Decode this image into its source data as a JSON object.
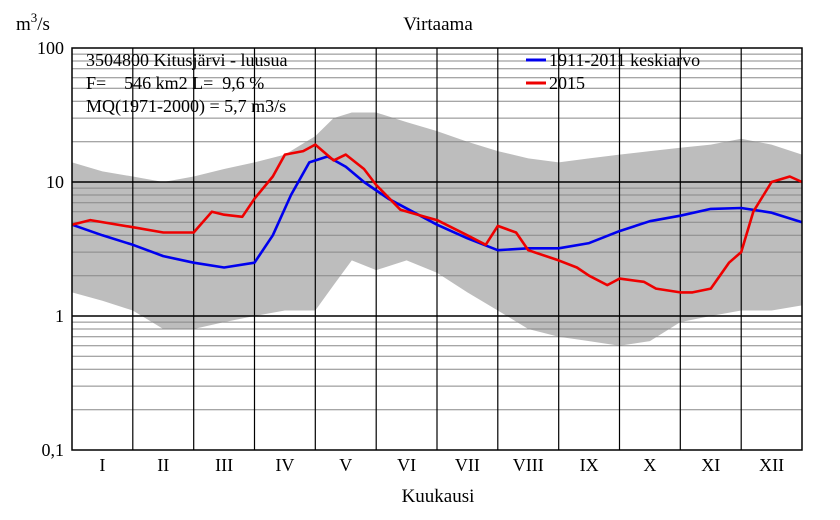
{
  "chart_data": {
    "type": "line",
    "title": "Virtaama",
    "ylabel": "m3/s",
    "ylabel_base": "m",
    "ylabel_sup": "3",
    "ylabel_rest": "/s",
    "xlabel": "Kuukausi",
    "yscale": "log",
    "ylim": [
      0.1,
      100
    ],
    "xlim": [
      0,
      12
    ],
    "y_tick_labels": [
      {
        "value": 100,
        "label": "100"
      },
      {
        "value": 10,
        "label": "10"
      },
      {
        "value": 1,
        "label": "1"
      },
      {
        "value": 0.1,
        "label": "0,1"
      }
    ],
    "categories": [
      "I",
      "II",
      "III",
      "IV",
      "V",
      "VI",
      "VII",
      "VIII",
      "IX",
      "X",
      "XI",
      "XII"
    ],
    "info_lines": [
      "3504800 Kitusjärvi - luusua",
      "F=    546 km2 L=  9,6 %",
      "MQ(1971-2000) = 5,7 m3/s"
    ],
    "colors": {
      "band": "#bdbdbd",
      "mean": "#0000ee",
      "year": "#ee0000",
      "axis": "#000000",
      "grid": "#888888"
    },
    "envelope": {
      "name": "min-max range",
      "x": [
        0,
        0.5,
        1.0,
        1.5,
        2.0,
        2.5,
        3.0,
        3.5,
        4.0,
        4.3,
        4.6,
        5.0,
        5.5,
        6.0,
        6.5,
        7.0,
        7.5,
        8.0,
        8.5,
        9.0,
        9.5,
        10.0,
        10.5,
        11.0,
        11.5,
        12.0
      ],
      "max": [
        14,
        12,
        11,
        10,
        11,
        12.5,
        14,
        16,
        22,
        30,
        33,
        33,
        28,
        24,
        20,
        17,
        15,
        14,
        15,
        16,
        17,
        18,
        19,
        21,
        19,
        16
      ],
      "min": [
        1.5,
        1.3,
        1.1,
        0.8,
        0.8,
        0.9,
        1.0,
        1.1,
        1.1,
        1.7,
        2.6,
        2.2,
        2.6,
        2.1,
        1.5,
        1.1,
        0.8,
        0.7,
        0.65,
        0.6,
        0.65,
        0.9,
        1.0,
        1.1,
        1.1,
        1.2
      ]
    },
    "series": [
      {
        "name": "1911-2011 keskiarvo",
        "x": [
          0,
          0.5,
          1.0,
          1.5,
          2.0,
          2.5,
          3.0,
          3.3,
          3.6,
          3.9,
          4.2,
          4.5,
          4.8,
          5.2,
          5.6,
          6.0,
          6.5,
          7.0,
          7.5,
          8.0,
          8.5,
          9.0,
          9.5,
          10.0,
          10.5,
          11.0,
          11.5,
          12.0
        ],
        "values": [
          4.8,
          4.0,
          3.4,
          2.8,
          2.5,
          2.3,
          2.5,
          4.0,
          8.0,
          14.0,
          15.5,
          13.0,
          10.0,
          7.5,
          6.0,
          4.8,
          3.8,
          3.1,
          3.2,
          3.2,
          3.5,
          4.3,
          5.1,
          5.6,
          6.3,
          6.4,
          5.9,
          5.0
        ]
      },
      {
        "name": "2015",
        "x": [
          0,
          0.3,
          1.0,
          1.5,
          2.0,
          2.3,
          2.5,
          2.8,
          3.0,
          3.3,
          3.5,
          3.8,
          4.0,
          4.3,
          4.5,
          4.8,
          5.0,
          5.4,
          5.8,
          6.0,
          6.5,
          6.8,
          7.0,
          7.3,
          7.5,
          8.0,
          8.3,
          8.5,
          8.8,
          9.0,
          9.4,
          9.6,
          10.0,
          10.2,
          10.5,
          10.8,
          11.0,
          11.2,
          11.5,
          11.8,
          12.0
        ],
        "values": [
          4.8,
          5.2,
          4.6,
          4.2,
          4.2,
          6.0,
          5.7,
          5.5,
          7.5,
          11.0,
          16.0,
          17.0,
          19.0,
          14.5,
          16.0,
          12.5,
          9.5,
          6.2,
          5.5,
          5.2,
          4.0,
          3.4,
          4.7,
          4.2,
          3.1,
          2.6,
          2.3,
          2.0,
          1.7,
          1.9,
          1.8,
          1.6,
          1.5,
          1.5,
          1.6,
          2.5,
          3.0,
          6.0,
          10.0,
          11.0,
          10.0
        ]
      }
    ],
    "legend": {
      "placement": "top-right",
      "entries": [
        {
          "label": "1911-2011 keskiarvo",
          "color": "#0000ee"
        },
        {
          "label": "2015",
          "color": "#ee0000"
        }
      ]
    }
  }
}
